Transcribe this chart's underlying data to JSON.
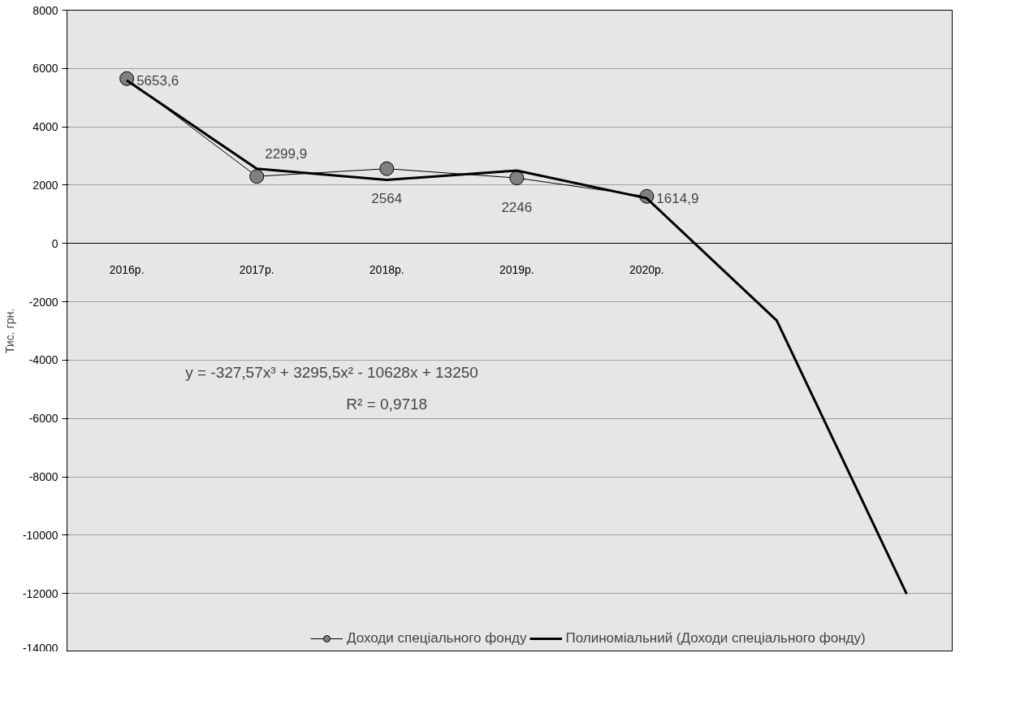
{
  "chart_data": {
    "type": "line",
    "ylabel": "Тис. грн.",
    "categories": [
      "2016р.",
      "2017р.",
      "2018р.",
      "2019р.",
      "2020р.",
      null,
      null
    ],
    "ylim": [
      -14000,
      8000
    ],
    "yticks": [
      -14000,
      -12000,
      -10000,
      -8000,
      -6000,
      -4000,
      -2000,
      0,
      2000,
      4000,
      6000,
      8000
    ],
    "grid": "y",
    "legend": "bottom",
    "series": [
      {
        "name": "Доходи спеціального фонду",
        "color": "#808080",
        "marker": "circle",
        "line_style": "solid",
        "values": [
          5653.6,
          2299.9,
          2564,
          2246,
          1614.9,
          null,
          null
        ],
        "value_labels": [
          "5653,6",
          "2299,9",
          "2564",
          "2246",
          "1614,9",
          null,
          null
        ]
      },
      {
        "name": "Полиноміальний (Доходи спеціального фонду)",
        "color": "#000000",
        "marker": "none",
        "line_style": "solid",
        "values": [
          5590,
          2560,
          2180,
          2500,
          1550,
          -2640,
          -12020
        ]
      }
    ],
    "annotations": [
      "y = -327,57x³ + 3295,5x² - 10628x + 13250",
      "R² = 0,9718"
    ]
  }
}
